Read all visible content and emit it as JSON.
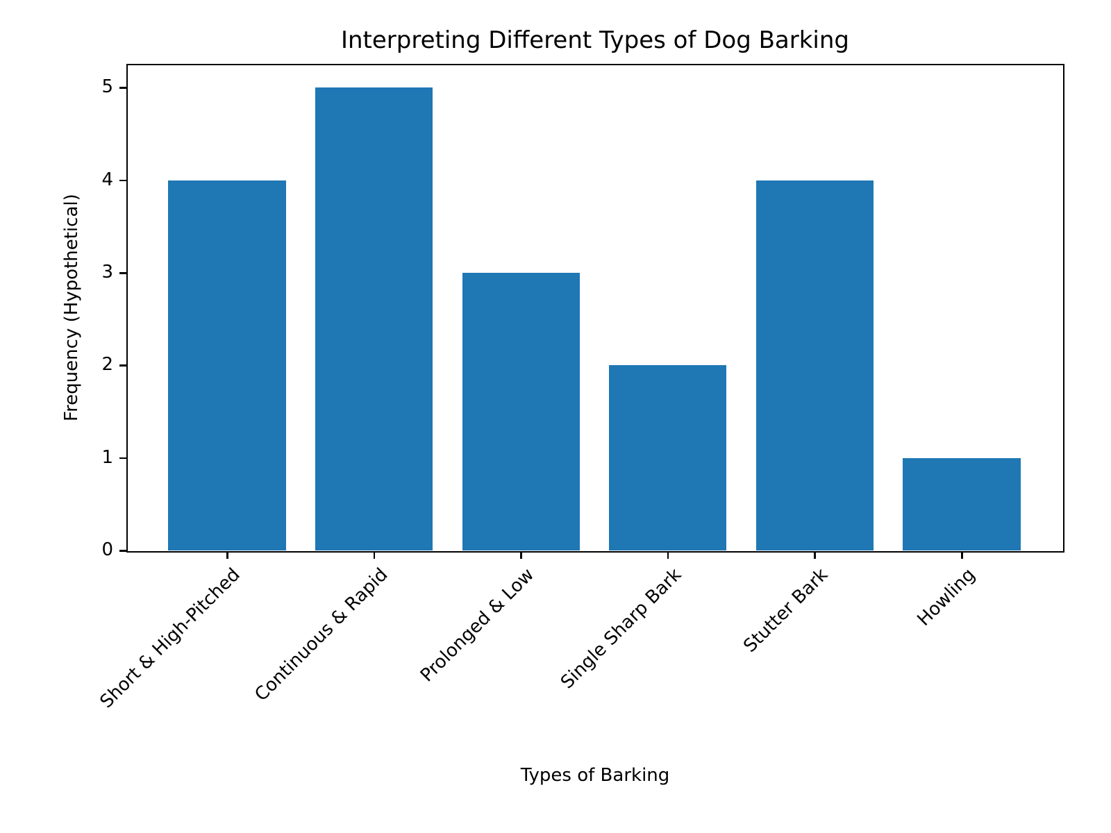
{
  "chart_data": {
    "type": "bar",
    "title": "Interpreting Different Types of Dog Barking",
    "xlabel": "Types of Barking",
    "ylabel": "Frequency (Hypothetical)",
    "categories": [
      "Short & High-Pitched",
      "Continuous & Rapid",
      "Prolonged & Low",
      "Single Sharp Bark",
      "Stutter Bark",
      "Howling"
    ],
    "values": [
      4,
      5,
      3,
      2,
      4,
      1
    ],
    "ylim": [
      0,
      5.25
    ],
    "yticks": [
      0,
      1,
      2,
      3,
      4,
      5
    ],
    "xtick_rotation": 45,
    "grid": false,
    "legend": null,
    "colors": {
      "bar": "#1f77b4",
      "axes": "#000000",
      "background": "#ffffff"
    }
  }
}
